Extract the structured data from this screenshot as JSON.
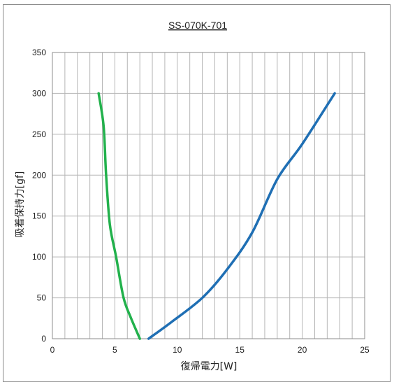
{
  "chart_data": {
    "type": "line",
    "title": "SS-070K-701",
    "xlabel": "復帰電力[W]",
    "ylabel": "吸着保持力[gf]",
    "xlim": [
      0,
      25
    ],
    "ylim": [
      0,
      350
    ],
    "x_ticks": [
      0,
      5,
      10,
      15,
      20,
      25
    ],
    "y_ticks": [
      0,
      50,
      100,
      150,
      200,
      250,
      300,
      350
    ],
    "x_minor_step": 1,
    "y_minor_step": 50,
    "grid": true,
    "series": [
      {
        "color": "#22b14c",
        "points": [
          [
            3.7,
            300
          ],
          [
            4.1,
            260
          ],
          [
            4.3,
            200
          ],
          [
            4.6,
            140
          ],
          [
            5.1,
            100
          ],
          [
            5.7,
            50
          ],
          [
            6.3,
            25
          ],
          [
            7.0,
            0
          ]
        ]
      },
      {
        "color": "#1f6fb4",
        "points": [
          [
            7.7,
            0
          ],
          [
            9.5,
            20
          ],
          [
            12,
            50
          ],
          [
            14,
            85
          ],
          [
            16,
            130
          ],
          [
            18,
            195
          ],
          [
            20,
            238
          ],
          [
            22.6,
            300
          ]
        ]
      }
    ]
  }
}
